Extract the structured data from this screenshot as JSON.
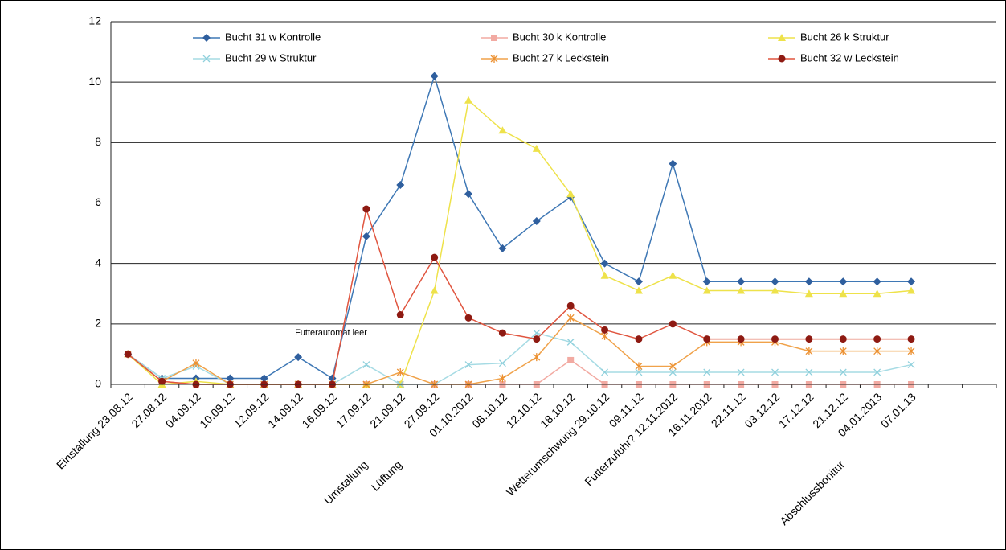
{
  "chart_data": {
    "type": "line",
    "categories": [
      "Einstallung  23.08.12",
      "27.08.12",
      "04.09.12",
      "10.09.12",
      "12.09.12",
      "14.09.12",
      "16.09.12",
      "17.09.12",
      "21.09.12",
      "27.09.12",
      "01.10.2012",
      "08.10.12",
      "12.10.12",
      "18.10.12",
      "Wetterumschwung 29.10.12",
      "09.11.12",
      "Futterzufuhr? 12.11.2012",
      "16.11.2012",
      "22.11.12",
      "03.12.12",
      "17.12.12",
      "21.12.12",
      "04.01.2013",
      "07.01.13",
      null,
      null
    ],
    "category_notes": [
      null,
      null,
      null,
      null,
      null,
      null,
      null,
      "Umstallung",
      "Lüftung",
      null,
      null,
      null,
      null,
      null,
      null,
      null,
      null,
      null,
      null,
      null,
      null,
      "Abschlussbonitur",
      null,
      null,
      null,
      null
    ],
    "annotation": "Futterautomat  leer",
    "series": [
      {
        "name": "Bucht 31 w Kontrolle",
        "color": "#3f78b5",
        "marker_color": "#2f5f9e",
        "marker": "diamond",
        "values": [
          1.0,
          0.2,
          0.2,
          0.2,
          0.2,
          0.9,
          0.2,
          4.9,
          6.6,
          10.2,
          6.3,
          4.5,
          5.4,
          6.2,
          4.0,
          3.4,
          7.3,
          3.4,
          3.4,
          3.4,
          3.4,
          3.4,
          3.4,
          3.4,
          null,
          null
        ]
      },
      {
        "name": "Bucht 30 k Kontrolle",
        "color": "#f2aaa2",
        "marker_color": "#f2aaa2",
        "marker": "square",
        "values": [
          1.0,
          0.1,
          0,
          0,
          0,
          0,
          0,
          0,
          0,
          0,
          0,
          0,
          0,
          0.8,
          0,
          0,
          0,
          0,
          0,
          0,
          0,
          0,
          0,
          0,
          null,
          null
        ]
      },
      {
        "name": "Bucht 26 k Struktur",
        "color": "#eee24a",
        "marker_color": "#eee24a",
        "marker": "triangle",
        "values": [
          1.0,
          0,
          0.1,
          0,
          0,
          0,
          0,
          0,
          0,
          3.1,
          9.4,
          8.4,
          7.8,
          6.3,
          3.6,
          3.1,
          3.6,
          3.1,
          3.1,
          3.1,
          3.0,
          3.0,
          3.0,
          3.1,
          null,
          null
        ]
      },
      {
        "name": "Bucht 29 w Struktur",
        "color": "#a6dbe4",
        "marker_color": "#8fd0dc",
        "marker": "x",
        "values": [
          1.0,
          0.2,
          0.6,
          0,
          0,
          0,
          0,
          0.65,
          0,
          0,
          0.65,
          0.7,
          1.7,
          1.4,
          0.4,
          0.4,
          0.4,
          0.4,
          0.4,
          0.4,
          0.4,
          0.4,
          0.4,
          0.65,
          null,
          null
        ]
      },
      {
        "name": "Bucht 27 k Leckstein",
        "color": "#f0a24a",
        "marker_color": "#ec9030",
        "marker": "asterisk",
        "values": [
          1.0,
          0.1,
          0.7,
          0,
          0,
          0,
          0,
          0,
          0.4,
          0,
          0,
          0.2,
          0.9,
          2.2,
          1.6,
          0.6,
          0.6,
          1.4,
          1.4,
          1.4,
          1.1,
          1.1,
          1.1,
          1.1,
          null,
          null
        ]
      },
      {
        "name": "Bucht 32 w Leckstein",
        "color": "#e0553f",
        "marker_color": "#8e1a12",
        "marker": "circle",
        "values": [
          1.0,
          0.1,
          0,
          0,
          0,
          0,
          0,
          5.8,
          2.3,
          4.2,
          2.2,
          1.7,
          1.5,
          2.6,
          1.8,
          1.5,
          2.0,
          1.5,
          1.5,
          1.5,
          1.5,
          1.5,
          1.5,
          1.5,
          null,
          null
        ]
      }
    ],
    "ylim": [
      0,
      12
    ],
    "yticks": [
      0,
      2,
      4,
      6,
      8,
      10,
      12
    ],
    "grid": true
  }
}
